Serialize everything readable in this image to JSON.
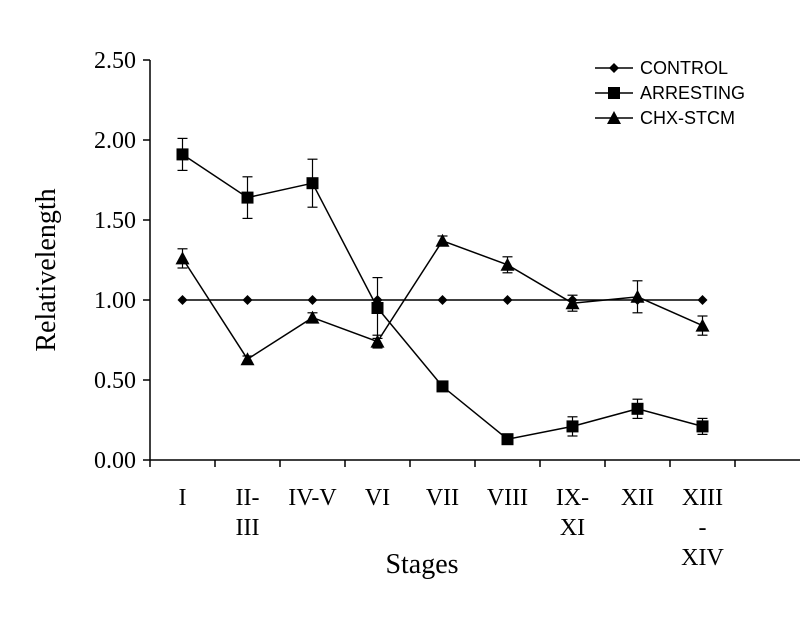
{
  "chart_data": {
    "type": "line",
    "xlabel": "Stages",
    "ylabel": "Relativelength",
    "ylim": [
      0,
      2.5
    ],
    "yticks": [
      "0.00",
      "0.50",
      "1.00",
      "1.50",
      "2.00",
      "2.50"
    ],
    "categories": [
      [
        "I"
      ],
      [
        "II-",
        "III"
      ],
      [
        "IV-V"
      ],
      [
        "VI"
      ],
      [
        "VII"
      ],
      [
        "VIII"
      ],
      [
        "IX-",
        "XI"
      ],
      [
        "XII"
      ],
      [
        "XIII",
        "-",
        "XIV"
      ]
    ],
    "grid": false,
    "legend_position": "top-right",
    "series": [
      {
        "name": "CONTROL",
        "marker": "diamond",
        "values": [
          1.0,
          1.0,
          1.0,
          1.0,
          1.0,
          1.0,
          1.0,
          1.0,
          1.0
        ],
        "errors": [
          0,
          0,
          0,
          0,
          0,
          0,
          0,
          0,
          0
        ]
      },
      {
        "name": "ARRESTING",
        "marker": "square",
        "values": [
          1.91,
          1.64,
          1.73,
          0.95,
          0.46,
          0.13,
          0.21,
          0.32,
          0.21
        ],
        "errors": [
          0.1,
          0.13,
          0.15,
          0.19,
          0.03,
          0.02,
          0.06,
          0.06,
          0.05
        ]
      },
      {
        "name": "CHX-STCM",
        "marker": "triangle",
        "values": [
          1.26,
          0.63,
          0.89,
          0.74,
          1.37,
          1.22,
          0.98,
          1.02,
          0.84
        ],
        "errors": [
          0.06,
          0.02,
          0.03,
          0.04,
          0.03,
          0.05,
          0.05,
          0.1,
          0.06
        ]
      }
    ]
  }
}
